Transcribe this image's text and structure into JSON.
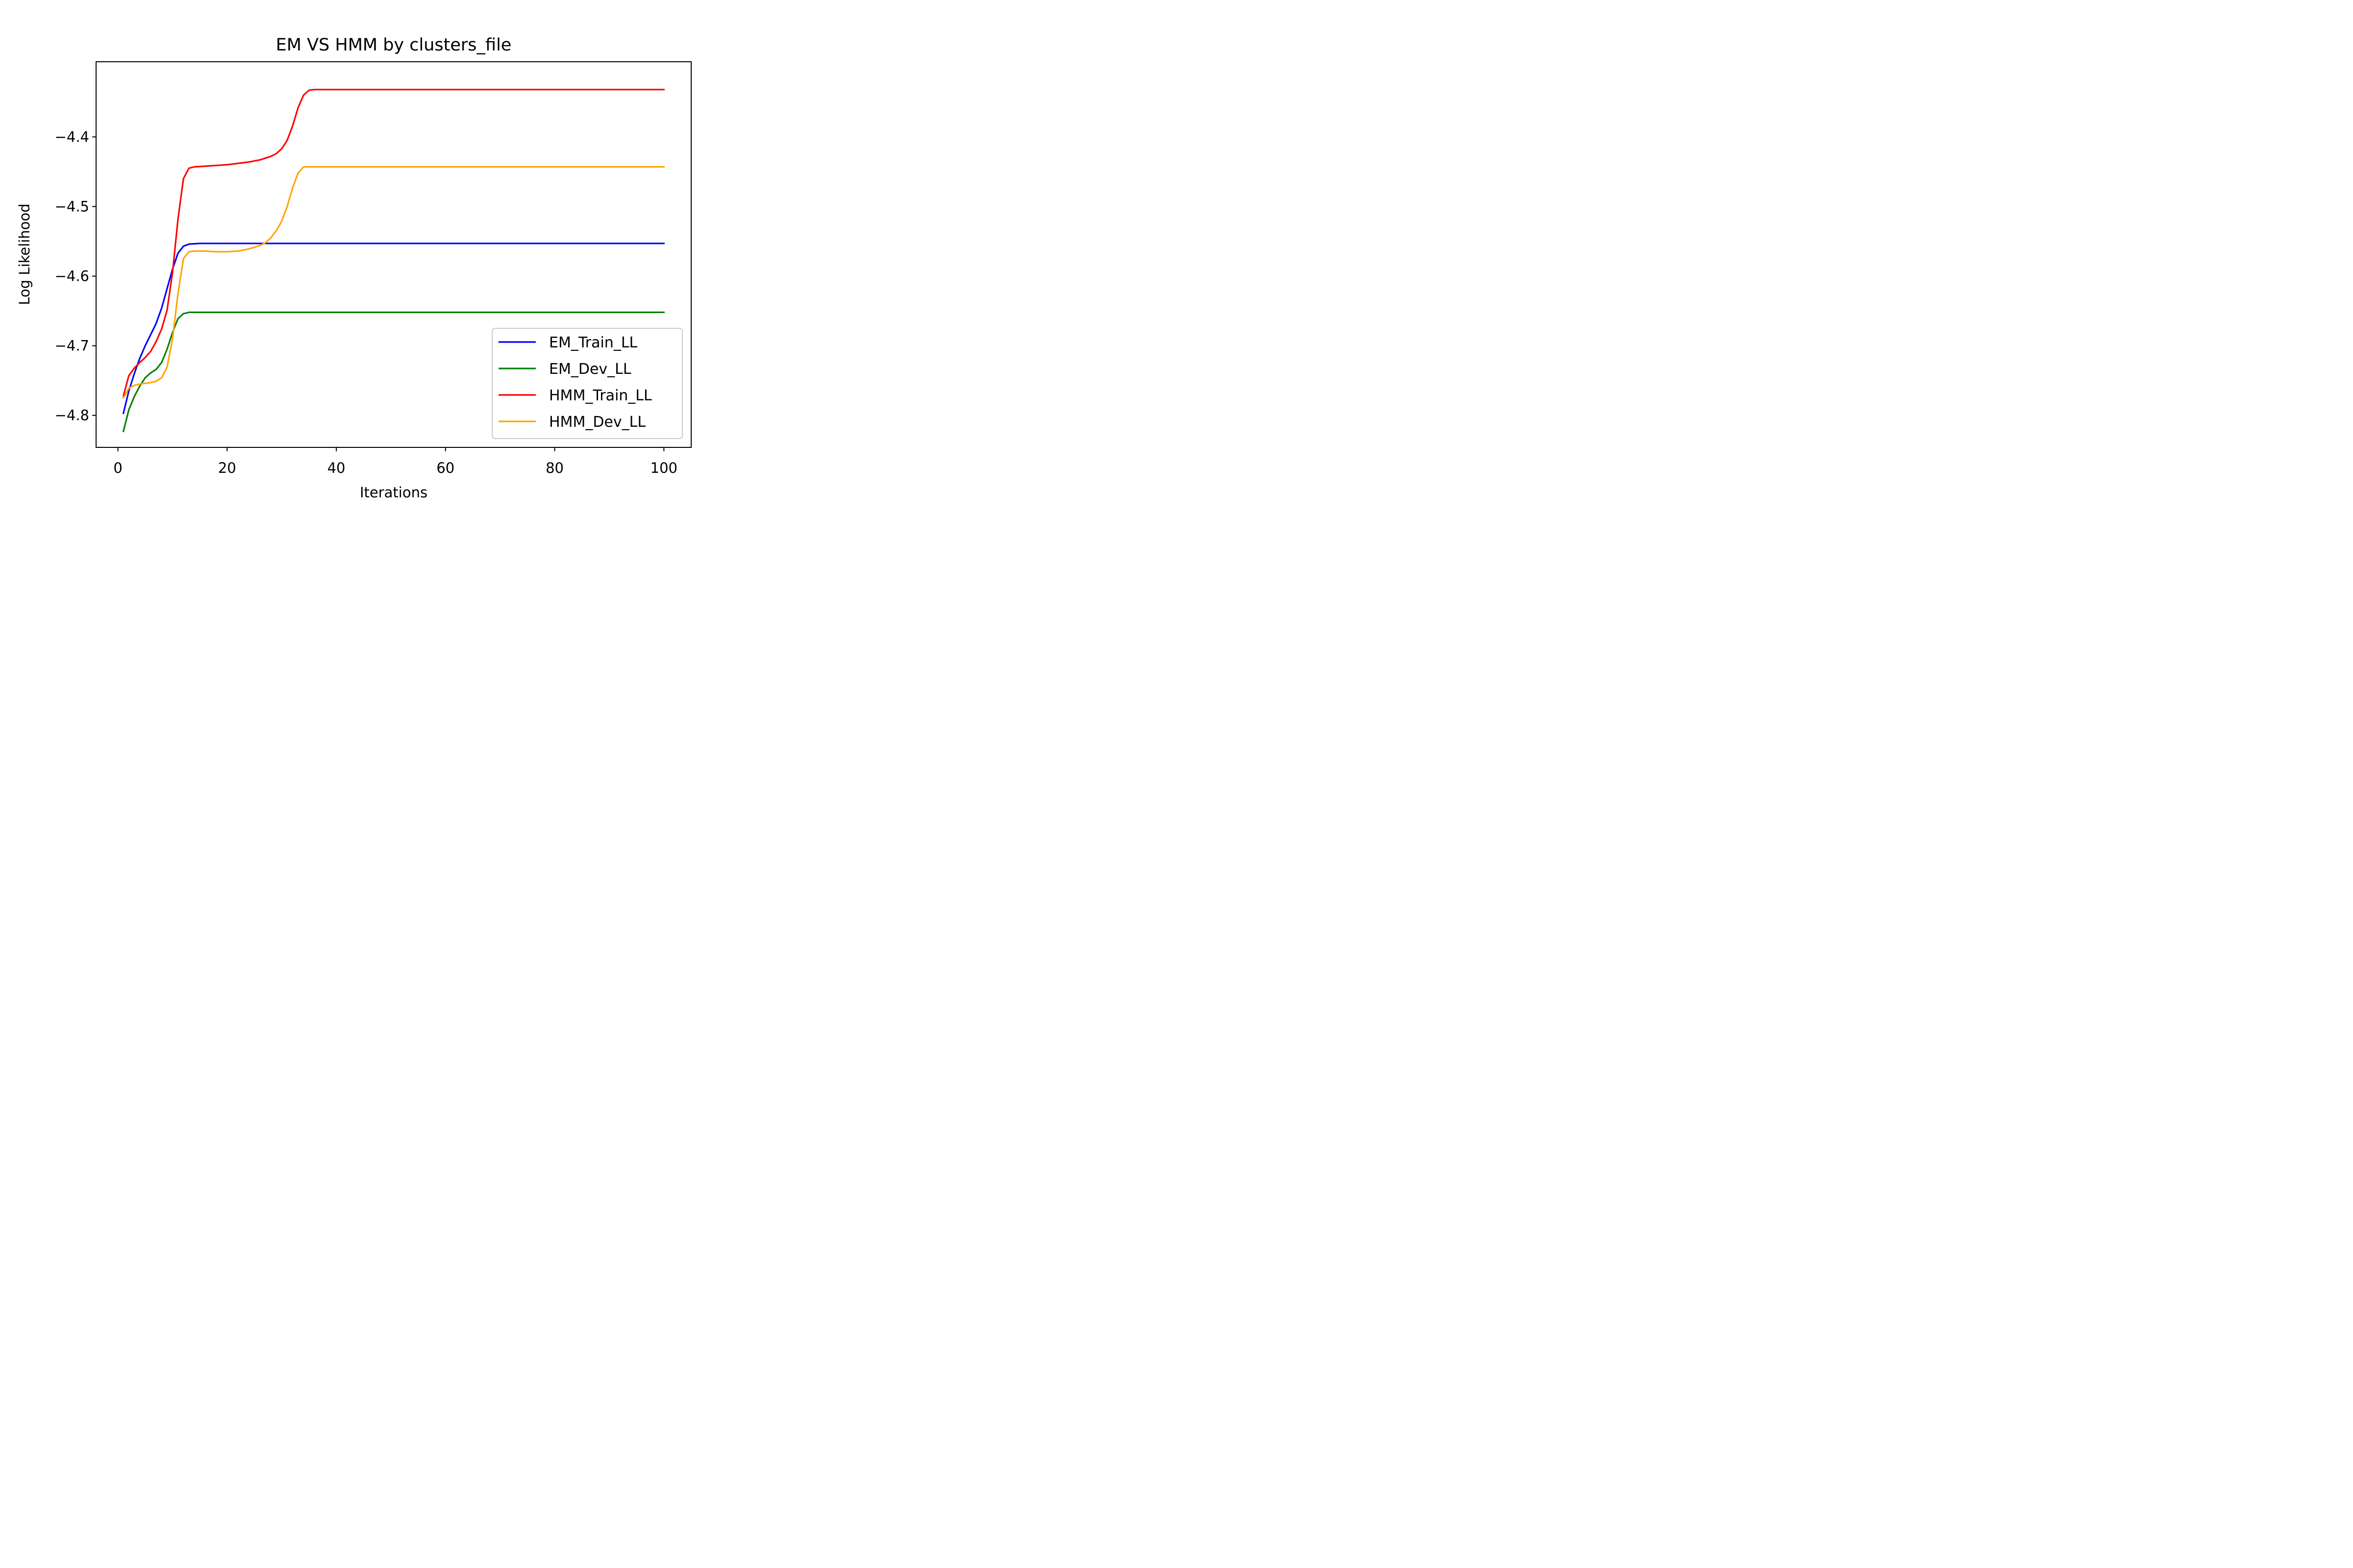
{
  "chart_data": {
    "type": "line",
    "title": "EM VS HMM by clusters_file",
    "xlabel": "Iterations",
    "ylabel": "Log Likelihood",
    "xlim": [
      -4,
      105
    ],
    "ylim": [
      -4.846,
      -4.292
    ],
    "xticks": [
      0,
      20,
      40,
      60,
      80,
      100
    ],
    "xtick_labels": [
      "0",
      "20",
      "40",
      "60",
      "80",
      "100"
    ],
    "yticks": [
      -4.8,
      -4.7,
      -4.6,
      -4.5,
      -4.4
    ],
    "ytick_labels": [
      "−4.8",
      "−4.7",
      "−4.6",
      "−4.5",
      "−4.4"
    ],
    "grid": false,
    "legend_position": "lower right",
    "series": [
      {
        "name": "EM_Train_LL",
        "color": "#0000ff",
        "points": [
          [
            1,
            -4.797
          ],
          [
            2,
            -4.765
          ],
          [
            3,
            -4.74
          ],
          [
            4,
            -4.718
          ],
          [
            5,
            -4.7
          ],
          [
            6,
            -4.684
          ],
          [
            7,
            -4.668
          ],
          [
            8,
            -4.646
          ],
          [
            9,
            -4.618
          ],
          [
            10,
            -4.59
          ],
          [
            11,
            -4.567
          ],
          [
            12,
            -4.557
          ],
          [
            13,
            -4.554
          ],
          [
            14,
            -4.5535
          ],
          [
            15,
            -4.553
          ],
          [
            20,
            -4.553
          ],
          [
            100,
            -4.553
          ]
        ]
      },
      {
        "name": "EM_Dev_LL",
        "color": "#008000",
        "points": [
          [
            1,
            -4.823
          ],
          [
            2,
            -4.792
          ],
          [
            3,
            -4.773
          ],
          [
            4,
            -4.758
          ],
          [
            5,
            -4.746
          ],
          [
            6,
            -4.739
          ],
          [
            7,
            -4.734
          ],
          [
            8,
            -4.724
          ],
          [
            9,
            -4.705
          ],
          [
            10,
            -4.681
          ],
          [
            11,
            -4.661
          ],
          [
            12,
            -4.654
          ],
          [
            13,
            -4.652
          ],
          [
            15,
            -4.652
          ],
          [
            100,
            -4.652
          ]
        ]
      },
      {
        "name": "HMM_Train_LL",
        "color": "#ff0000",
        "points": [
          [
            1,
            -4.772
          ],
          [
            2,
            -4.743
          ],
          [
            3,
            -4.732
          ],
          [
            4,
            -4.724
          ],
          [
            5,
            -4.717
          ],
          [
            6,
            -4.708
          ],
          [
            7,
            -4.694
          ],
          [
            8,
            -4.676
          ],
          [
            9,
            -4.649
          ],
          [
            10,
            -4.595
          ],
          [
            11,
            -4.518
          ],
          [
            12,
            -4.46
          ],
          [
            13,
            -4.445
          ],
          [
            14,
            -4.443
          ],
          [
            16,
            -4.442
          ],
          [
            20,
            -4.44
          ],
          [
            24,
            -4.436
          ],
          [
            26,
            -4.433
          ],
          [
            28,
            -4.428
          ],
          [
            29,
            -4.424
          ],
          [
            30,
            -4.417
          ],
          [
            31,
            -4.405
          ],
          [
            32,
            -4.384
          ],
          [
            33,
            -4.358
          ],
          [
            34,
            -4.34
          ],
          [
            35,
            -4.333
          ],
          [
            36,
            -4.332
          ],
          [
            40,
            -4.332
          ],
          [
            100,
            -4.332
          ]
        ]
      },
      {
        "name": "HMM_Dev_LL",
        "color": "#ffa500",
        "points": [
          [
            1,
            -4.775
          ],
          [
            2,
            -4.761
          ],
          [
            3,
            -4.757
          ],
          [
            4,
            -4.755
          ],
          [
            5,
            -4.754
          ],
          [
            6,
            -4.753
          ],
          [
            7,
            -4.751
          ],
          [
            8,
            -4.746
          ],
          [
            9,
            -4.731
          ],
          [
            10,
            -4.69
          ],
          [
            11,
            -4.625
          ],
          [
            12,
            -4.575
          ],
          [
            13,
            -4.565
          ],
          [
            14,
            -4.564
          ],
          [
            16,
            -4.564
          ],
          [
            18,
            -4.565
          ],
          [
            20,
            -4.565
          ],
          [
            22,
            -4.564
          ],
          [
            24,
            -4.561
          ],
          [
            26,
            -4.556
          ],
          [
            27,
            -4.552
          ],
          [
            28,
            -4.545
          ],
          [
            29,
            -4.535
          ],
          [
            30,
            -4.521
          ],
          [
            31,
            -4.5
          ],
          [
            32,
            -4.473
          ],
          [
            33,
            -4.452
          ],
          [
            34,
            -4.443
          ],
          [
            35,
            -4.443
          ],
          [
            40,
            -4.443
          ],
          [
            100,
            -4.443
          ]
        ]
      }
    ]
  }
}
